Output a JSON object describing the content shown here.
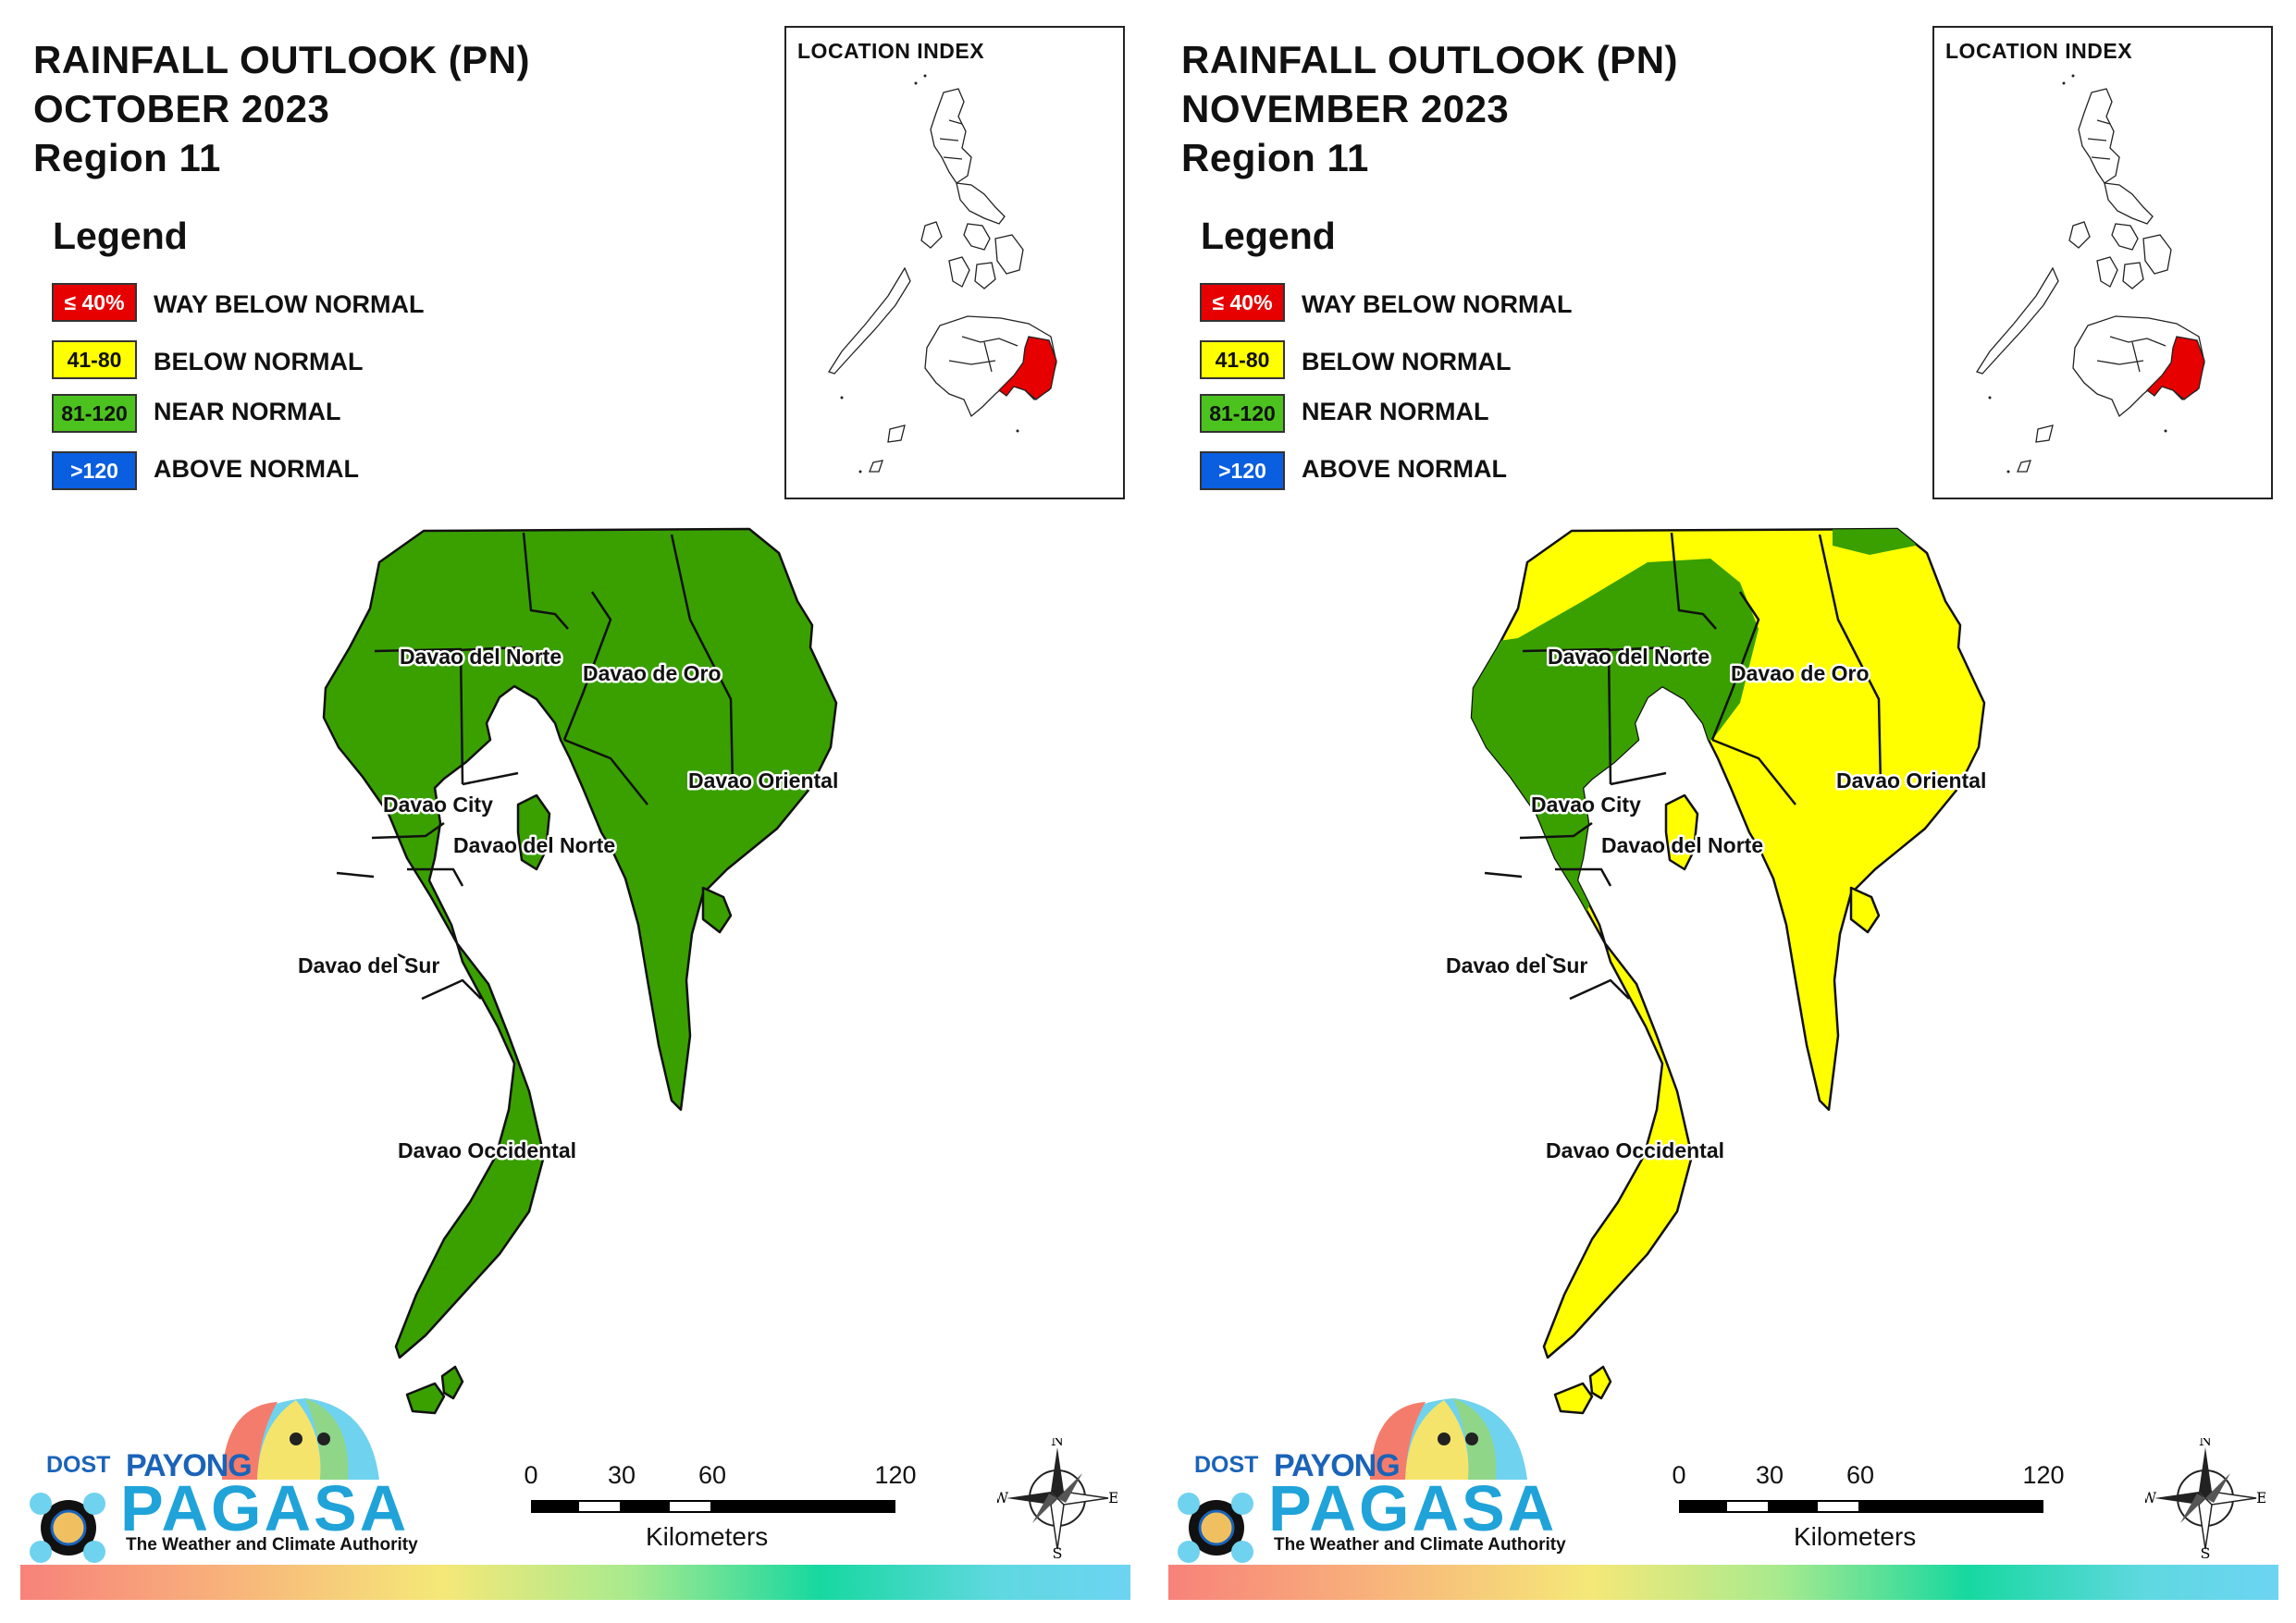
{
  "panels": [
    {
      "title_line1": "RAINFALL OUTLOOK (PN)",
      "title_line2": "OCTOBER 2023",
      "title_line3": "Region 11",
      "region_fill": "#39a000",
      "outlook": {
        "Davao del Norte": "Near Normal",
        "Davao de Oro": "Near Normal",
        "Davao City": "Near Normal",
        "Davao Oriental": "Near Normal",
        "Davao del Sur": "Near Normal",
        "Davao Occidental": "Near Normal"
      }
    },
    {
      "title_line1": "RAINFALL OUTLOOK (PN)",
      "title_line2": "NOVEMBER 2023",
      "title_line3": "Region 11",
      "region_fill": "#ffff00",
      "outlook": {
        "Davao del Norte": "Near Normal / Below Normal",
        "Davao de Oro": "Below Normal",
        "Davao City": "Near Normal",
        "Davao Oriental": "Below Normal",
        "Davao del Sur": "Below Normal",
        "Davao Occidental": "Below Normal"
      }
    }
  ],
  "legend": {
    "title": "Legend",
    "items": [
      {
        "range": "≤ 40%",
        "label": "WAY BELOW NORMAL",
        "color": "#e60000",
        "text_color": "#ffffff"
      },
      {
        "range": "41-80",
        "label": "BELOW NORMAL",
        "color": "#ffff00",
        "text_color": "#111111"
      },
      {
        "range": "81-120",
        "label": "NEAR NORMAL",
        "color": "#4cc21f",
        "text_color": "#111111"
      },
      {
        "range": ">120",
        "label": "ABOVE NORMAL",
        "color": "#0a5ee0",
        "text_color": "#ffffff"
      }
    ]
  },
  "location_index": {
    "label": "LOCATION INDEX",
    "highlight_color": "#e60000"
  },
  "labels": {
    "davao_del_norte": "Davao del Norte",
    "davao_de_oro": "Davao de Oro",
    "davao_city": "Davao City",
    "davao_del_norte_island": "Davao del Norte",
    "davao_oriental": "Davao Oriental",
    "davao_del_sur": "Davao del Sur",
    "davao_occidental": "Davao Occidental"
  },
  "colors": {
    "near_normal_fill": "#39a000",
    "below_normal_fill": "#ffff00",
    "boundary": "#111111"
  },
  "scale": {
    "ticks": [
      "0",
      "30",
      "60",
      "120"
    ],
    "units": "Kilometers"
  },
  "compass": {
    "n": "N",
    "s": "S",
    "e": "E",
    "w": "W"
  },
  "logo": {
    "dost": "DOST",
    "payong": "PAYONG",
    "pagasa": "PAGASA",
    "tagline": "The Weather and Climate Authority"
  }
}
